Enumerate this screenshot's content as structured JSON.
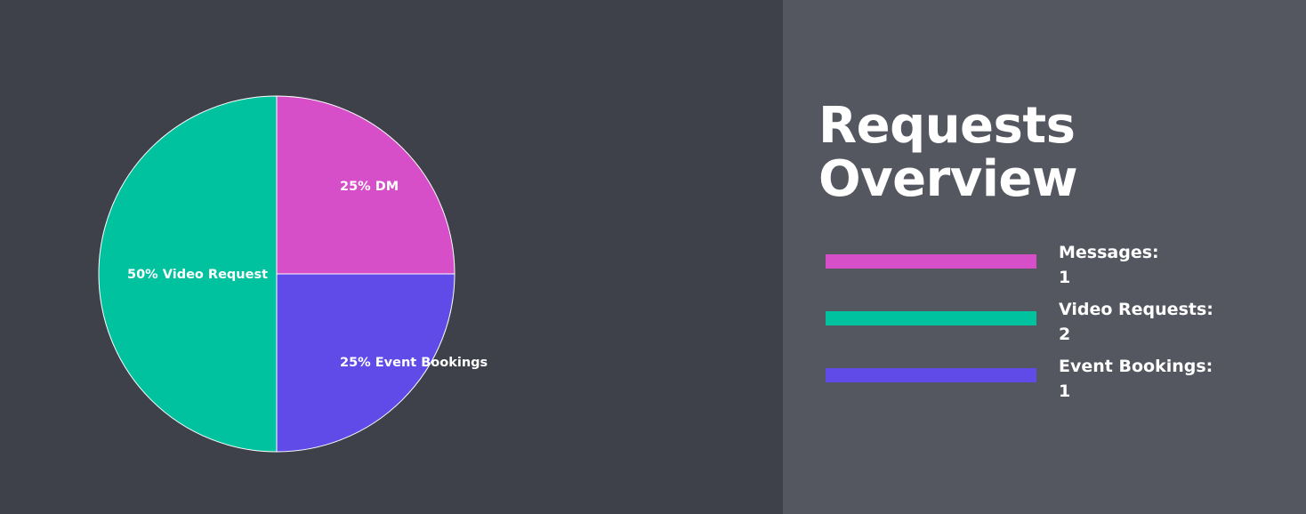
{
  "title_lines": [
    "Requests",
    "Overview"
  ],
  "chart_data": {
    "type": "pie",
    "slices": [
      {
        "label": "25% DM",
        "value": 25,
        "color": "#d64fc9"
      },
      {
        "label": "25% Event Bookings",
        "value": 25,
        "color": "#604be8"
      },
      {
        "label": "50% Video Request",
        "value": 50,
        "color": "#00c29f"
      }
    ]
  },
  "legend": [
    {
      "name": "Messages:",
      "count": "1",
      "color": "#d64fc9"
    },
    {
      "name": "Video Requests:",
      "count": "2",
      "color": "#00c29f"
    },
    {
      "name": "Event Bookings:",
      "count": "1",
      "color": "#604be8"
    }
  ]
}
